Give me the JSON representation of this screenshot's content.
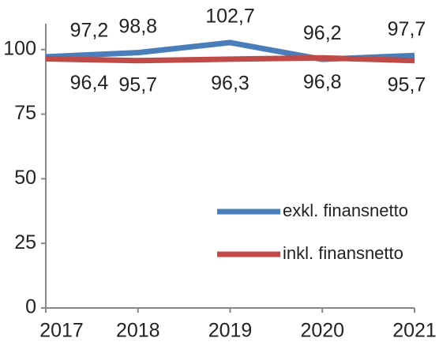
{
  "chart_data": {
    "type": "line",
    "categories": [
      "2017",
      "2018",
      "2019",
      "2020",
      "2021"
    ],
    "series": [
      {
        "name": "exkl. finansnetto",
        "color": "#4a7ebb",
        "values": [
          97.2,
          98.8,
          102.7,
          96.2,
          97.7
        ],
        "value_labels": [
          "97,2",
          "98,8",
          "102,7",
          "96,2",
          "97,7"
        ]
      },
      {
        "name": "inkl. finansnetto",
        "color": "#be4b48",
        "values": [
          96.4,
          95.7,
          96.3,
          96.8,
          95.7
        ],
        "value_labels": [
          "96,4",
          "95,7",
          "96,3",
          "96,8",
          "95,7"
        ]
      }
    ],
    "ylim": [
      0,
      110
    ],
    "yticks": [
      0,
      25,
      50,
      75,
      100
    ],
    "grid": false,
    "legend": "right"
  }
}
